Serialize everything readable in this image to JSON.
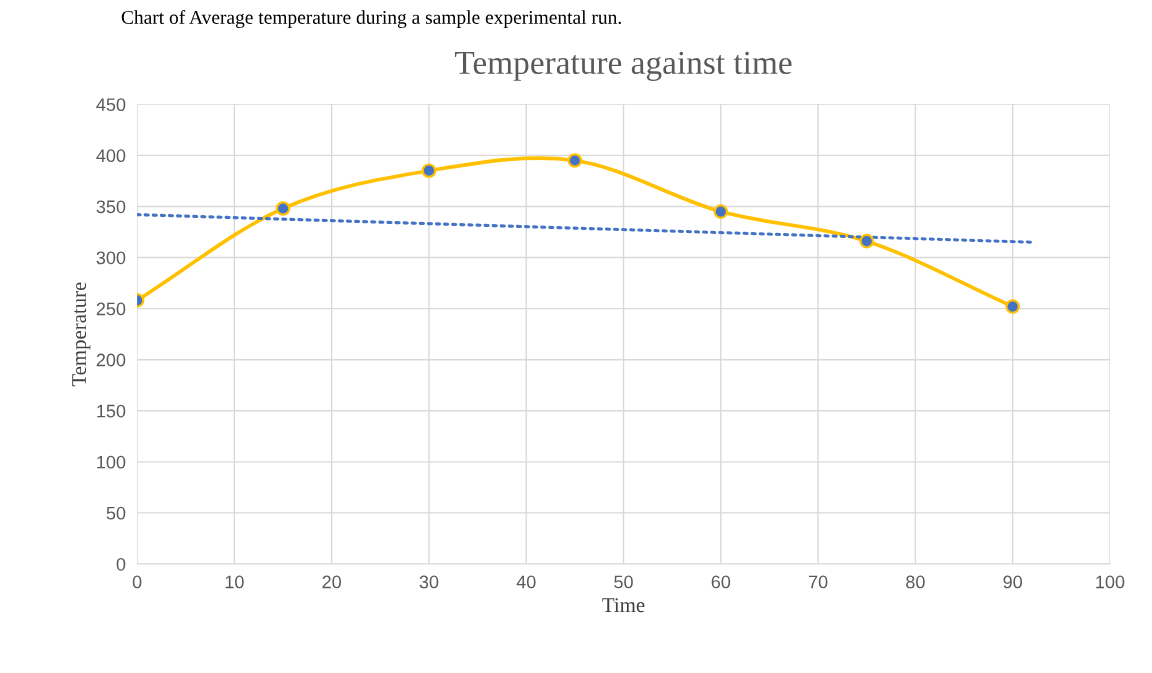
{
  "chart_data": {
    "type": "line",
    "title": "Temperature against time",
    "xlabel": "Time",
    "ylabel": "Temperature",
    "annotations": [
      "Chart of Average temperature during a sample experimental run."
    ],
    "x": [
      0,
      15,
      30,
      45,
      60,
      75,
      90
    ],
    "series": [
      {
        "color": "#ffc000",
        "colors": [
          "#4472c4",
          "#4472c4",
          "#4472c4",
          "#4472c4",
          "#4472c4",
          "#4472c4",
          "#4472c4"
        ],
        "marker": "circle",
        "line_style": "solid",
        "values": [
          258,
          348,
          385,
          395,
          345,
          316,
          252
        ]
      },
      {
        "color": "#4472c4",
        "x": [
          0,
          92
        ],
        "values": [
          342,
          315
        ],
        "marker": "none",
        "line_style": "dotted"
      }
    ],
    "xlim": [
      0,
      100
    ],
    "xticks": [
      0,
      10,
      20,
      30,
      40,
      50,
      60,
      70,
      80,
      90,
      100
    ],
    "ylim": [
      0,
      450
    ],
    "yticks": [
      0,
      50,
      100,
      150,
      200,
      250,
      300,
      350,
      400,
      450
    ],
    "grid": true,
    "legend": false
  }
}
